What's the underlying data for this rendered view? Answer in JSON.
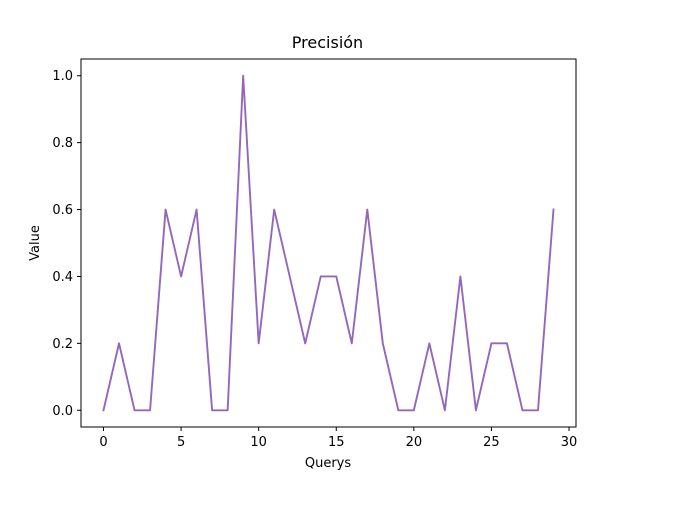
{
  "chart_data": {
    "type": "line",
    "title": "Precisión",
    "xlabel": "Querys",
    "ylabel": "Value",
    "xlim": [
      -1.45,
      30.45
    ],
    "ylim": [
      -0.05,
      1.05
    ],
    "xticks": [
      0,
      5,
      10,
      15,
      20,
      25,
      30
    ],
    "xtick_labels": [
      "0",
      "5",
      "10",
      "15",
      "20",
      "25",
      "30"
    ],
    "yticks": [
      0.0,
      0.2,
      0.4,
      0.6,
      0.8,
      1.0
    ],
    "ytick_labels": [
      "0.0",
      "0.2",
      "0.4",
      "0.6",
      "0.8",
      "1.0"
    ],
    "grid": false,
    "series": [
      {
        "color": "#9467bd",
        "x": [
          0,
          1,
          2,
          3,
          4,
          5,
          6,
          7,
          8,
          9,
          10,
          11,
          12,
          13,
          14,
          15,
          16,
          17,
          18,
          19,
          20,
          21,
          22,
          23,
          24,
          25,
          26,
          27,
          28,
          29
        ],
        "values": [
          0.0,
          0.2,
          0.0,
          0.0,
          0.6,
          0.4,
          0.6,
          0.0,
          0.0,
          1.0,
          0.2,
          0.6,
          0.4,
          0.2,
          0.4,
          0.4,
          0.2,
          0.6,
          0.2,
          0.0,
          0.0,
          0.2,
          0.0,
          0.4,
          0.0,
          0.2,
          0.2,
          0.0,
          0.0,
          0.6
        ]
      }
    ]
  }
}
